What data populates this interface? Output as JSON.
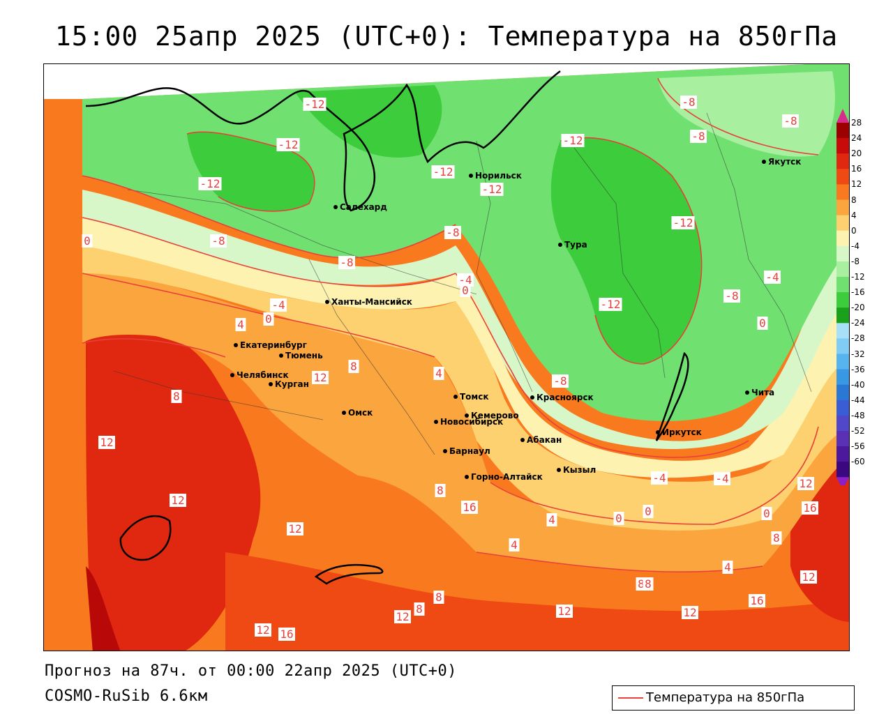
{
  "title": "15:00 25апр 2025 (UTC+0): Температура на 850гПа",
  "footer": {
    "line1": "Прогноз на 87ч. от 00:00 22апр 2025 (UTC+0)",
    "line2": "COSMO-RuSib 6.6км"
  },
  "legend": {
    "label": "Температура на 850гПа",
    "line_color": "#e8403a"
  },
  "colorbar": {
    "labels": [
      "28",
      "24",
      "20",
      "16",
      "12",
      "8",
      "4",
      "0",
      "-4",
      "-8",
      "-12",
      "-16",
      "-20",
      "-24",
      "-28",
      "-32",
      "-36",
      "-40",
      "-44",
      "-48",
      "-52",
      "-56",
      "-60"
    ],
    "colors": [
      "#9c0000",
      "#c80a0a",
      "#e02810",
      "#f04a14",
      "#f97a1e",
      "#fba53e",
      "#fdd070",
      "#fdf2b0",
      "#d8f7c8",
      "#a8efa0",
      "#70e070",
      "#3ccc3c",
      "#1aa01a",
      "#a8e0f8",
      "#80ccf4",
      "#58b4ee",
      "#3898e4",
      "#2a78d4",
      "#3a5cd4",
      "#5048c8",
      "#5a30b4",
      "#4c189c",
      "#3c0880"
    ]
  },
  "cities": [
    {
      "name": "Норильск"
    },
    {
      "name": "Якутск"
    },
    {
      "name": "Салехард"
    },
    {
      "name": "Тура"
    },
    {
      "name": "Ханты-Мансийск"
    },
    {
      "name": "Екатеринбург"
    },
    {
      "name": "Тюмень"
    },
    {
      "name": "Челябинск"
    },
    {
      "name": "Курган"
    },
    {
      "name": "Омск"
    },
    {
      "name": "Новосибирск"
    },
    {
      "name": "Томск"
    },
    {
      "name": "Кемерово"
    },
    {
      "name": "Барнаул"
    },
    {
      "name": "Красноярск"
    },
    {
      "name": "Абакан"
    },
    {
      "name": "Иркутск"
    },
    {
      "name": "Чита"
    },
    {
      "name": "Кызыл"
    },
    {
      "name": "Горно-Алтайск"
    }
  ],
  "contour_labels": [
    "-12",
    "-12",
    "-12",
    "-12",
    "-12",
    "-12",
    "-12",
    "-12",
    "-8",
    "-8",
    "-8",
    "-8",
    "-8",
    "-8",
    "-8",
    "-8",
    "-4",
    "-4",
    "-4",
    "-4",
    "-4",
    "0",
    "0",
    "0",
    "0",
    "0",
    "0",
    "0",
    "4",
    "4",
    "4",
    "4",
    "4",
    "8",
    "8",
    "8",
    "8",
    "8",
    "8",
    "8",
    "8",
    "12",
    "12",
    "12",
    "12",
    "12",
    "12",
    "12",
    "12",
    "12",
    "12",
    "16",
    "16",
    "16",
    "16"
  ]
}
